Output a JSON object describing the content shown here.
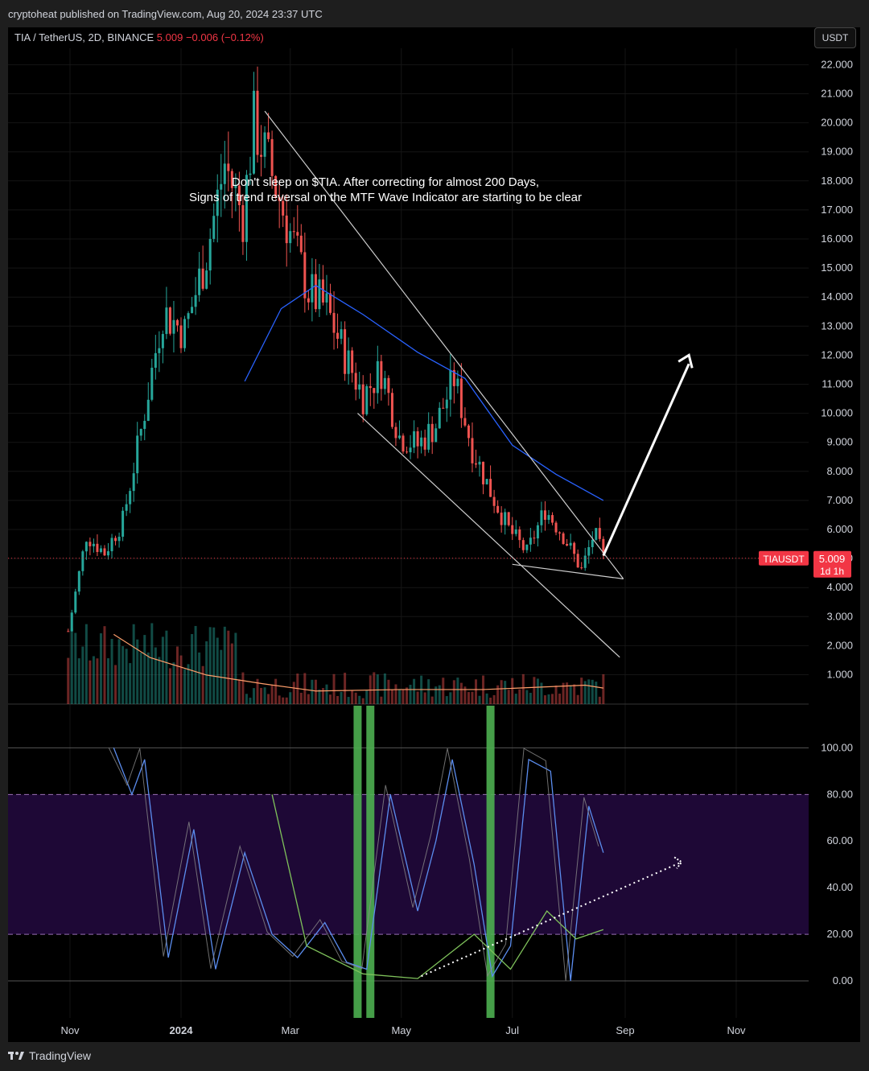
{
  "header": {
    "published": "cryptoheat published on TradingView.com, Aug 20, 2024 23:37 UTC",
    "symbol": "TIA / TetherUS, 2D, BINANCE",
    "last_price": "5.009",
    "change": "−0.006 (−0.12%)",
    "currency_button": "USDT"
  },
  "annotation": {
    "line1": "Don't sleep on $TIA. After correcting for almost 200 Days,",
    "line2": "Signs of trend reversal on the MTF Wave Indicator are starting to be clear"
  },
  "price_tag": {
    "ticker": "TIAUSDT",
    "price": "5.009",
    "countdown": "1d 1h"
  },
  "footer": {
    "brand": "TradingView"
  },
  "colors": {
    "up": "#26a69a",
    "down": "#ef5350",
    "ma": "#2962ff",
    "osc_blue": "#5b8def",
    "osc_green": "#7fc25b",
    "osc_gray": "#8a8a8a",
    "signal": "#4caf50",
    "zone": "#1e0836"
  },
  "chart_data": [
    {
      "type": "candlestick",
      "symbol": "TIA / TetherUS, 2D, BINANCE",
      "x_ticks": [
        "Nov",
        "2024",
        "Mar",
        "May",
        "Jul",
        "Sep",
        "Nov"
      ],
      "y_ticks": [
        "22.000",
        "21.000",
        "20.000",
        "19.000",
        "18.000",
        "17.000",
        "16.000",
        "15.000",
        "14.000",
        "13.000",
        "12.000",
        "11.000",
        "10.000",
        "9.000",
        "8.000",
        "7.000",
        "6.000",
        "5.000",
        "4.000",
        "3.000",
        "2.000",
        "1.000"
      ],
      "ylim": [
        0.0,
        22.6
      ],
      "approx_close_path": [
        {
          "date": "2023-10-31",
          "close": 2.5
        },
        {
          "date": "2023-11-10",
          "close": 5.8
        },
        {
          "date": "2023-11-20",
          "close": 5.2
        },
        {
          "date": "2023-11-30",
          "close": 6.3
        },
        {
          "date": "2023-12-10",
          "close": 9.4
        },
        {
          "date": "2023-12-22",
          "close": 13.5
        },
        {
          "date": "2024-01-03",
          "close": 12.8
        },
        {
          "date": "2024-01-15",
          "close": 15.5
        },
        {
          "date": "2024-01-25",
          "close": 18.6
        },
        {
          "date": "2024-02-04",
          "close": 16.8
        },
        {
          "date": "2024-02-10",
          "close": 20.0
        },
        {
          "date": "2024-02-20",
          "close": 18.2
        },
        {
          "date": "2024-03-01",
          "close": 16.2
        },
        {
          "date": "2024-03-11",
          "close": 14.2
        },
        {
          "date": "2024-03-21",
          "close": 13.6
        },
        {
          "date": "2024-03-31",
          "close": 12.0
        },
        {
          "date": "2024-04-10",
          "close": 10.6
        },
        {
          "date": "2024-04-20",
          "close": 11.5
        },
        {
          "date": "2024-04-30",
          "close": 9.2
        },
        {
          "date": "2024-05-10",
          "close": 8.9
        },
        {
          "date": "2024-05-20",
          "close": 9.6
        },
        {
          "date": "2024-05-30",
          "close": 11.2
        },
        {
          "date": "2024-06-09",
          "close": 8.8
        },
        {
          "date": "2024-06-19",
          "close": 7.3
        },
        {
          "date": "2024-06-29",
          "close": 6.0
        },
        {
          "date": "2024-07-09",
          "close": 5.2
        },
        {
          "date": "2024-07-19",
          "close": 6.7
        },
        {
          "date": "2024-07-29",
          "close": 5.8
        },
        {
          "date": "2024-08-08",
          "close": 4.6
        },
        {
          "date": "2024-08-15",
          "close": 5.9
        },
        {
          "date": "2024-08-20",
          "close": 5.009
        }
      ],
      "moving_average": [
        {
          "date": "2024-02-05",
          "value": 11.1
        },
        {
          "date": "2024-02-25",
          "value": 13.6
        },
        {
          "date": "2024-03-15",
          "value": 14.4
        },
        {
          "date": "2024-04-10",
          "value": 13.4
        },
        {
          "date": "2024-05-10",
          "value": 12.1
        },
        {
          "date": "2024-06-05",
          "value": 11.2
        },
        {
          "date": "2024-07-01",
          "value": 8.9
        },
        {
          "date": "2024-07-25",
          "value": 7.9
        },
        {
          "date": "2024-08-20",
          "value": 7.0
        }
      ],
      "volume_ma": [
        {
          "date": "2023-11-25",
          "value": 2.4
        },
        {
          "date": "2023-12-15",
          "value": 1.6
        },
        {
          "date": "2024-01-15",
          "value": 1.0
        },
        {
          "date": "2024-02-15",
          "value": 0.7
        },
        {
          "date": "2024-03-15",
          "value": 0.45
        },
        {
          "date": "2024-05-01",
          "value": 0.5
        },
        {
          "date": "2024-06-15",
          "value": 0.5
        },
        {
          "date": "2024-08-10",
          "value": 0.65
        },
        {
          "date": "2024-08-20",
          "value": 0.55
        }
      ],
      "last_price": 5.009
    },
    {
      "type": "line",
      "name": "MTF Wave Indicator",
      "y_ticks": [
        "100.00",
        "80.00",
        "60.00",
        "40.00",
        "20.00",
        "0.00"
      ],
      "ylim": [
        -20,
        120
      ],
      "zone": [
        20,
        80
      ],
      "series": [
        {
          "name": "",
          "values": [
            {
              "date": "2023-11-25",
              "value": 100
            },
            {
              "date": "2023-12-05",
              "value": 80
            },
            {
              "date": "2023-12-12",
              "value": 95
            },
            {
              "date": "2023-12-25",
              "value": 10
            },
            {
              "date": "2024-01-08",
              "value": 65
            },
            {
              "date": "2024-01-20",
              "value": 5
            },
            {
              "date": "2024-02-05",
              "value": 55
            },
            {
              "date": "2024-02-20",
              "value": 20
            },
            {
              "date": "2024-03-05",
              "value": 10
            },
            {
              "date": "2024-03-20",
              "value": 25
            },
            {
              "date": "2024-04-01",
              "value": 8
            },
            {
              "date": "2024-04-12",
              "value": 5
            },
            {
              "date": "2024-04-25",
              "value": 80
            },
            {
              "date": "2024-05-10",
              "value": 30
            },
            {
              "date": "2024-05-20",
              "value": 60
            },
            {
              "date": "2024-05-29",
              "value": 95
            },
            {
              "date": "2024-06-10",
              "value": 50
            },
            {
              "date": "2024-06-20",
              "value": 2
            },
            {
              "date": "2024-06-30",
              "value": 15
            },
            {
              "date": "2024-07-10",
              "value": 95
            },
            {
              "date": "2024-07-22",
              "value": 90
            },
            {
              "date": "2024-08-02",
              "value": 0
            },
            {
              "date": "2024-08-12",
              "value": 75
            },
            {
              "date": "2024-08-20",
              "value": 55
            }
          ]
        },
        {
          "name": "",
          "values": [
            {
              "date": "2024-02-20",
              "value": 80
            },
            {
              "date": "2024-03-10",
              "value": 15
            },
            {
              "date": "2024-04-10",
              "value": 3
            },
            {
              "date": "2024-05-10",
              "value": 1
            },
            {
              "date": "2024-06-10",
              "value": 20
            },
            {
              "date": "2024-06-30",
              "value": 5
            },
            {
              "date": "2024-07-20",
              "value": 30
            },
            {
              "date": "2024-08-05",
              "value": 18
            },
            {
              "date": "2024-08-20",
              "value": 22
            }
          ]
        }
      ],
      "signal_bars": [
        "2024-04-07",
        "2024-04-14",
        "2024-06-19"
      ]
    }
  ]
}
